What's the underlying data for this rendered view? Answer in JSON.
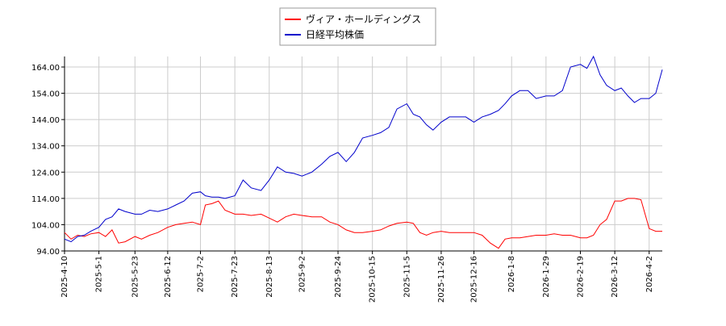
{
  "chart_data": {
    "type": "line",
    "title": "",
    "xlabel": "",
    "ylabel": "",
    "legend_position": "top-center",
    "grid": true,
    "ylim": [
      94.0,
      168.0
    ],
    "y_ticks": [
      "94.00",
      "104.00",
      "114.00",
      "124.00",
      "134.00",
      "144.00",
      "154.00",
      "164.00"
    ],
    "x_ticks": [
      "2025-4-10",
      "2025-5-1",
      "2025-5-23",
      "2025-6-12",
      "2025-7-2",
      "2025-7-23",
      "2025-8-13",
      "2025-9-2",
      "2025-9-24",
      "2025-10-15",
      "2025-11-5",
      "2025-11-26",
      "2025-12-16",
      "2026-1-8",
      "2026-1-29",
      "2026-2-19",
      "2026-3-12",
      "2026-4-2"
    ],
    "series": [
      {
        "name": "ヴィア・ホールディングス",
        "color": "#ff0000",
        "x": [
          "2025-4-10",
          "2025-4-14",
          "2025-4-18",
          "2025-4-22",
          "2025-4-26",
          "2025-5-1",
          "2025-5-5",
          "2025-5-9",
          "2025-5-13",
          "2025-5-17",
          "2025-5-23",
          "2025-5-27",
          "2025-6-1",
          "2025-6-6",
          "2025-6-12",
          "2025-6-17",
          "2025-6-22",
          "2025-6-27",
          "2025-7-2",
          "2025-7-5",
          "2025-7-9",
          "2025-7-13",
          "2025-7-17",
          "2025-7-23",
          "2025-7-28",
          "2025-8-2",
          "2025-8-8",
          "2025-8-13",
          "2025-8-18",
          "2025-8-23",
          "2025-8-28",
          "2025-9-2",
          "2025-9-8",
          "2025-9-14",
          "2025-9-19",
          "2025-9-24",
          "2025-9-29",
          "2025-10-4",
          "2025-10-9",
          "2025-10-15",
          "2025-10-20",
          "2025-10-25",
          "2025-10-30",
          "2025-11-5",
          "2025-11-9",
          "2025-11-13",
          "2025-11-17",
          "2025-11-21",
          "2025-11-26",
          "2025-12-1",
          "2025-12-6",
          "2025-12-11",
          "2025-12-16",
          "2025-12-21",
          "2025-12-26",
          "2025-12-31",
          "2026-1-4",
          "2026-1-8",
          "2026-1-13",
          "2026-1-18",
          "2026-1-23",
          "2026-1-29",
          "2026-2-3",
          "2026-2-8",
          "2026-2-13",
          "2026-2-19",
          "2026-2-23",
          "2026-2-27",
          "2026-3-3",
          "2026-3-7",
          "2026-3-12",
          "2026-3-16",
          "2026-3-20",
          "2026-3-24",
          "2026-3-28",
          "2026-4-2",
          "2026-4-6",
          "2026-4-10"
        ],
        "y": [
          101.0,
          98.5,
          100.0,
          99.5,
          100.5,
          101.0,
          99.5,
          102.0,
          97.0,
          97.5,
          99.5,
          98.5,
          100.0,
          101.0,
          103.0,
          104.0,
          104.5,
          105.0,
          104.0,
          111.5,
          112.0,
          113.0,
          109.5,
          108.0,
          108.0,
          107.5,
          108.0,
          106.5,
          105.0,
          107.0,
          108.0,
          107.5,
          107.0,
          107.0,
          105.0,
          104.0,
          102.0,
          101.0,
          101.0,
          101.5,
          102.0,
          103.5,
          104.5,
          105.0,
          104.5,
          101.0,
          100.0,
          101.0,
          101.5,
          101.0,
          101.0,
          101.0,
          101.0,
          100.0,
          97.0,
          95.0,
          98.5,
          99.0,
          99.0,
          99.5,
          100.0,
          100.0,
          100.5,
          100.0,
          100.0,
          99.0,
          99.0,
          100.0,
          104.0,
          106.0,
          113.0,
          113.0,
          114.0,
          114.0,
          113.5,
          102.5,
          101.5,
          101.5
        ]
      },
      {
        "name": "日経平均株価",
        "color": "#0000cc",
        "x": [
          "2025-4-10",
          "2025-4-14",
          "2025-4-18",
          "2025-4-22",
          "2025-4-26",
          "2025-5-1",
          "2025-5-5",
          "2025-5-9",
          "2025-5-13",
          "2025-5-17",
          "2025-5-23",
          "2025-5-27",
          "2025-6-1",
          "2025-6-6",
          "2025-6-12",
          "2025-6-17",
          "2025-6-22",
          "2025-6-27",
          "2025-7-2",
          "2025-7-5",
          "2025-7-9",
          "2025-7-13",
          "2025-7-17",
          "2025-7-23",
          "2025-7-28",
          "2025-8-2",
          "2025-8-8",
          "2025-8-13",
          "2025-8-18",
          "2025-8-23",
          "2025-8-28",
          "2025-9-2",
          "2025-9-8",
          "2025-9-14",
          "2025-9-19",
          "2025-9-24",
          "2025-9-29",
          "2025-10-4",
          "2025-10-9",
          "2025-10-15",
          "2025-10-20",
          "2025-10-25",
          "2025-10-30",
          "2025-11-5",
          "2025-11-9",
          "2025-11-13",
          "2025-11-17",
          "2025-11-21",
          "2025-11-26",
          "2025-12-1",
          "2025-12-6",
          "2025-12-11",
          "2025-12-16",
          "2025-12-21",
          "2025-12-26",
          "2025-12-31",
          "2026-1-4",
          "2026-1-8",
          "2026-1-13",
          "2026-1-18",
          "2026-1-23",
          "2026-1-29",
          "2026-2-3",
          "2026-2-8",
          "2026-2-13",
          "2026-2-19",
          "2026-2-23",
          "2026-2-27",
          "2026-3-3",
          "2026-3-7",
          "2026-3-12",
          "2026-3-16",
          "2026-3-20",
          "2026-3-24",
          "2026-3-28",
          "2026-4-2",
          "2026-4-6",
          "2026-4-10"
        ],
        "y": [
          98.5,
          97.5,
          99.5,
          100.0,
          101.5,
          103.0,
          106.0,
          107.0,
          110.0,
          109.0,
          108.0,
          108.0,
          109.5,
          109.0,
          110.0,
          111.5,
          113.0,
          116.0,
          116.5,
          115.0,
          114.5,
          114.5,
          114.0,
          115.0,
          121.0,
          118.0,
          117.0,
          121.0,
          126.0,
          124.0,
          123.5,
          122.5,
          124.0,
          127.0,
          130.0,
          131.5,
          128.0,
          131.5,
          137.0,
          138.0,
          139.0,
          141.0,
          148.0,
          150.0,
          146.0,
          145.0,
          142.0,
          140.0,
          143.0,
          145.0,
          145.0,
          145.0,
          143.0,
          145.0,
          146.0,
          147.5,
          150.0,
          153.0,
          155.0,
          155.0,
          152.0,
          153.0,
          153.0,
          155.0,
          164.0,
          165.0,
          163.5,
          168.0,
          161.0,
          157.0,
          155.0,
          156.0,
          153.0,
          150.5,
          152.0,
          152.0,
          154.0,
          163.0
        ]
      }
    ]
  }
}
